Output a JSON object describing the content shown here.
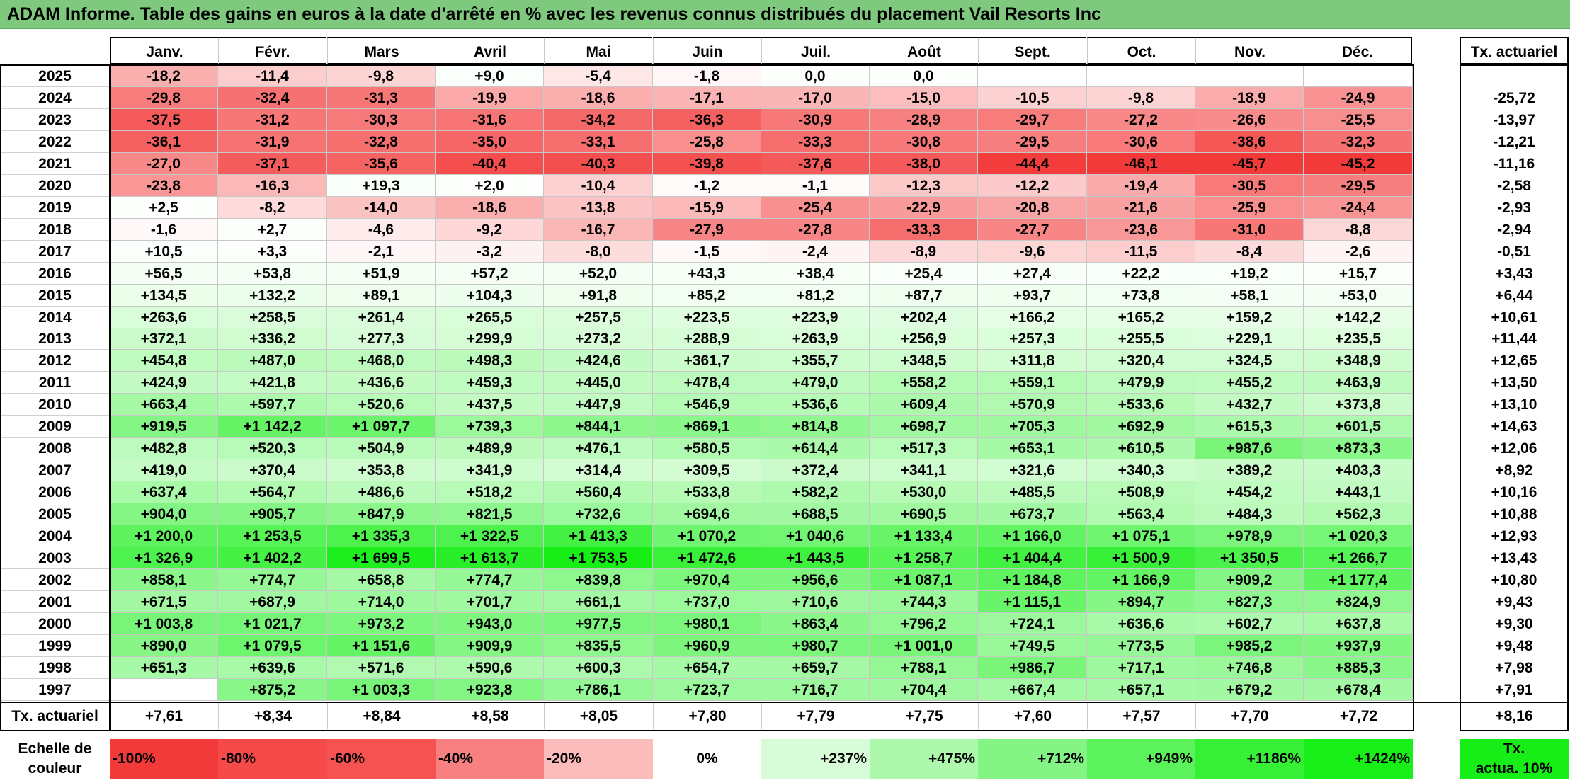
{
  "title": "ADAM Informe. Table des gains en euros à la date d'arrêté en % avec les revenus connus distribués du placement Vail Resorts Inc",
  "months": [
    "Janv.",
    "Févr.",
    "Mars",
    "Avril",
    "Mai",
    "Juin",
    "Juil.",
    "Août",
    "Sept.",
    "Oct.",
    "Nov.",
    "Déc."
  ],
  "rate_header": "Tx. actuariel",
  "rows": [
    {
      "year": "2025",
      "values": [
        "-18,2",
        "-11,4",
        "-9,8",
        "+9,0",
        "-5,4",
        "-1,8",
        "0,0",
        "0,0",
        "",
        "",
        "",
        ""
      ],
      "rate": ""
    },
    {
      "year": "2024",
      "values": [
        "-29,8",
        "-32,4",
        "-31,3",
        "-19,9",
        "-18,6",
        "-17,1",
        "-17,0",
        "-15,0",
        "-10,5",
        "-9,8",
        "-18,9",
        "-24,9"
      ],
      "rate": "-25,72"
    },
    {
      "year": "2023",
      "values": [
        "-37,5",
        "-31,2",
        "-30,3",
        "-31,6",
        "-34,2",
        "-36,3",
        "-30,9",
        "-28,9",
        "-29,7",
        "-27,2",
        "-26,6",
        "-25,5"
      ],
      "rate": "-13,97"
    },
    {
      "year": "2022",
      "values": [
        "-36,1",
        "-31,9",
        "-32,8",
        "-35,0",
        "-33,1",
        "-25,8",
        "-33,3",
        "-30,8",
        "-29,5",
        "-30,6",
        "-38,6",
        "-32,3"
      ],
      "rate": "-12,21"
    },
    {
      "year": "2021",
      "values": [
        "-27,0",
        "-37,1",
        "-35,6",
        "-40,4",
        "-40,3",
        "-39,8",
        "-37,6",
        "-38,0",
        "-44,4",
        "-46,1",
        "-45,7",
        "-45,2"
      ],
      "rate": "-11,16"
    },
    {
      "year": "2020",
      "values": [
        "-23,8",
        "-16,3",
        "+19,3",
        "+2,0",
        "-10,4",
        "-1,2",
        "-1,1",
        "-12,3",
        "-12,2",
        "-19,4",
        "-30,5",
        "-29,5"
      ],
      "rate": "-2,58"
    },
    {
      "year": "2019",
      "values": [
        "+2,5",
        "-8,2",
        "-14,0",
        "-18,6",
        "-13,8",
        "-15,9",
        "-25,4",
        "-22,9",
        "-20,8",
        "-21,6",
        "-25,9",
        "-24,4"
      ],
      "rate": "-2,93"
    },
    {
      "year": "2018",
      "values": [
        "-1,6",
        "+2,7",
        "-4,6",
        "-9,2",
        "-16,7",
        "-27,9",
        "-27,8",
        "-33,3",
        "-27,7",
        "-23,6",
        "-31,0",
        "-8,8"
      ],
      "rate": "-2,94"
    },
    {
      "year": "2017",
      "values": [
        "+10,5",
        "+3,3",
        "-2,1",
        "-3,2",
        "-8,0",
        "-1,5",
        "-2,4",
        "-8,9",
        "-9,6",
        "-11,5",
        "-8,4",
        "-2,6"
      ],
      "rate": "-0,51"
    },
    {
      "year": "2016",
      "values": [
        "+56,5",
        "+53,8",
        "+51,9",
        "+57,2",
        "+52,0",
        "+43,3",
        "+38,4",
        "+25,4",
        "+27,4",
        "+22,2",
        "+19,2",
        "+15,7"
      ],
      "rate": "+3,43"
    },
    {
      "year": "2015",
      "values": [
        "+134,5",
        "+132,2",
        "+89,1",
        "+104,3",
        "+91,8",
        "+85,2",
        "+81,2",
        "+87,7",
        "+93,7",
        "+73,8",
        "+58,1",
        "+53,0"
      ],
      "rate": "+6,44"
    },
    {
      "year": "2014",
      "values": [
        "+263,6",
        "+258,5",
        "+261,4",
        "+265,5",
        "+257,5",
        "+223,5",
        "+223,9",
        "+202,4",
        "+166,2",
        "+165,2",
        "+159,2",
        "+142,2"
      ],
      "rate": "+10,61"
    },
    {
      "year": "2013",
      "values": [
        "+372,1",
        "+336,2",
        "+277,3",
        "+299,9",
        "+273,2",
        "+288,9",
        "+263,9",
        "+256,9",
        "+257,3",
        "+255,5",
        "+229,1",
        "+235,5"
      ],
      "rate": "+11,44"
    },
    {
      "year": "2012",
      "values": [
        "+454,8",
        "+487,0",
        "+468,0",
        "+498,3",
        "+424,6",
        "+361,7",
        "+355,7",
        "+348,5",
        "+311,8",
        "+320,4",
        "+324,5",
        "+348,9"
      ],
      "rate": "+12,65"
    },
    {
      "year": "2011",
      "values": [
        "+424,9",
        "+421,8",
        "+436,6",
        "+459,3",
        "+445,0",
        "+478,4",
        "+479,0",
        "+558,2",
        "+559,1",
        "+479,9",
        "+455,2",
        "+463,9"
      ],
      "rate": "+13,50"
    },
    {
      "year": "2010",
      "values": [
        "+663,4",
        "+597,7",
        "+520,6",
        "+437,5",
        "+447,9",
        "+546,9",
        "+536,6",
        "+609,4",
        "+570,9",
        "+533,6",
        "+432,7",
        "+373,8"
      ],
      "rate": "+13,10"
    },
    {
      "year": "2009",
      "values": [
        "+919,5",
        "+1 142,2",
        "+1 097,7",
        "+739,3",
        "+844,1",
        "+869,1",
        "+814,8",
        "+698,7",
        "+705,3",
        "+692,9",
        "+615,3",
        "+601,5"
      ],
      "rate": "+14,63"
    },
    {
      "year": "2008",
      "values": [
        "+482,8",
        "+520,3",
        "+504,9",
        "+489,9",
        "+476,1",
        "+580,5",
        "+614,4",
        "+517,3",
        "+653,1",
        "+610,5",
        "+987,6",
        "+873,3"
      ],
      "rate": "+12,06"
    },
    {
      "year": "2007",
      "values": [
        "+419,0",
        "+370,4",
        "+353,8",
        "+341,9",
        "+314,4",
        "+309,5",
        "+372,4",
        "+341,1",
        "+321,6",
        "+340,3",
        "+389,2",
        "+403,3"
      ],
      "rate": "+8,92"
    },
    {
      "year": "2006",
      "values": [
        "+637,4",
        "+564,7",
        "+486,6",
        "+518,2",
        "+560,4",
        "+533,8",
        "+582,2",
        "+530,0",
        "+485,5",
        "+508,9",
        "+454,2",
        "+443,1"
      ],
      "rate": "+10,16"
    },
    {
      "year": "2005",
      "values": [
        "+904,0",
        "+905,7",
        "+847,9",
        "+821,5",
        "+732,6",
        "+694,6",
        "+688,5",
        "+690,5",
        "+673,7",
        "+563,4",
        "+484,3",
        "+562,3"
      ],
      "rate": "+10,88"
    },
    {
      "year": "2004",
      "values": [
        "+1 200,0",
        "+1 253,5",
        "+1 335,3",
        "+1 322,5",
        "+1 413,3",
        "+1 070,2",
        "+1 040,6",
        "+1 133,4",
        "+1 166,0",
        "+1 075,1",
        "+978,9",
        "+1 020,3"
      ],
      "rate": "+12,93"
    },
    {
      "year": "2003",
      "values": [
        "+1 326,9",
        "+1 402,2",
        "+1 699,5",
        "+1 613,7",
        "+1 753,5",
        "+1 472,6",
        "+1 443,5",
        "+1 258,7",
        "+1 404,4",
        "+1 500,9",
        "+1 350,5",
        "+1 266,7"
      ],
      "rate": "+13,43"
    },
    {
      "year": "2002",
      "values": [
        "+858,1",
        "+774,7",
        "+658,8",
        "+774,7",
        "+839,8",
        "+970,4",
        "+956,6",
        "+1 087,1",
        "+1 184,8",
        "+1 166,9",
        "+909,2",
        "+1 177,4"
      ],
      "rate": "+10,80"
    },
    {
      "year": "2001",
      "values": [
        "+671,5",
        "+687,9",
        "+714,0",
        "+701,7",
        "+661,1",
        "+737,0",
        "+710,6",
        "+744,3",
        "+1 115,1",
        "+894,7",
        "+827,3",
        "+824,9"
      ],
      "rate": "+9,43"
    },
    {
      "year": "2000",
      "values": [
        "+1 003,8",
        "+1 021,7",
        "+973,2",
        "+943,0",
        "+977,5",
        "+980,1",
        "+863,4",
        "+796,2",
        "+724,1",
        "+636,6",
        "+602,7",
        "+637,8"
      ],
      "rate": "+9,30"
    },
    {
      "year": "1999",
      "values": [
        "+890,0",
        "+1 079,5",
        "+1 151,6",
        "+909,9",
        "+835,5",
        "+960,9",
        "+980,7",
        "+1 001,0",
        "+749,5",
        "+773,5",
        "+985,2",
        "+937,9"
      ],
      "rate": "+9,48"
    },
    {
      "year": "1998",
      "values": [
        "+651,3",
        "+639,6",
        "+571,6",
        "+590,6",
        "+600,3",
        "+654,7",
        "+659,7",
        "+788,1",
        "+986,7",
        "+717,1",
        "+746,8",
        "+885,3"
      ],
      "rate": "+7,98"
    },
    {
      "year": "1997",
      "values": [
        "",
        "+875,2",
        "+1 003,3",
        "+923,8",
        "+786,1",
        "+723,7",
        "+716,7",
        "+704,4",
        "+667,4",
        "+657,1",
        "+679,2",
        "+678,4"
      ],
      "rate": "+7,91"
    }
  ],
  "footer": {
    "label": "Tx. actuariel",
    "values": [
      "+7,61",
      "+8,34",
      "+8,84",
      "+8,58",
      "+8,05",
      "+7,80",
      "+7,79",
      "+7,75",
      "+7,60",
      "+7,57",
      "+7,70",
      "+7,72"
    ],
    "rate": "+8,16"
  },
  "scale": {
    "label_line1": "Echelle de",
    "label_line2": "couleur",
    "items": [
      {
        "label": "-100%",
        "color": "#f33a3a"
      },
      {
        "label": "-80%",
        "color": "#f54a4a"
      },
      {
        "label": "-60%",
        "color": "#f75252"
      },
      {
        "label": "-40%",
        "color": "#f98080"
      },
      {
        "label": "-20%",
        "color": "#fcbcbc"
      },
      {
        "label": "0%",
        "color": "#ffffff"
      },
      {
        "label": "+237%",
        "color": "#d8fcd8"
      },
      {
        "label": "+475%",
        "color": "#adf8ad"
      },
      {
        "label": "+712%",
        "color": "#84f584"
      },
      {
        "label": "+949%",
        "color": "#5cf25c"
      },
      {
        "label": "+1186%",
        "color": "#36f036"
      },
      {
        "label": "+1424%",
        "color": "#18ee18"
      }
    ],
    "rate_line1": "Tx.",
    "rate_line2": "actua. 10%",
    "rate_color": "#17ee17"
  },
  "colors": {
    "title_bar": "#7ec97e",
    "negative_max": "#f33a3a",
    "positive_max": "#16ee16"
  }
}
